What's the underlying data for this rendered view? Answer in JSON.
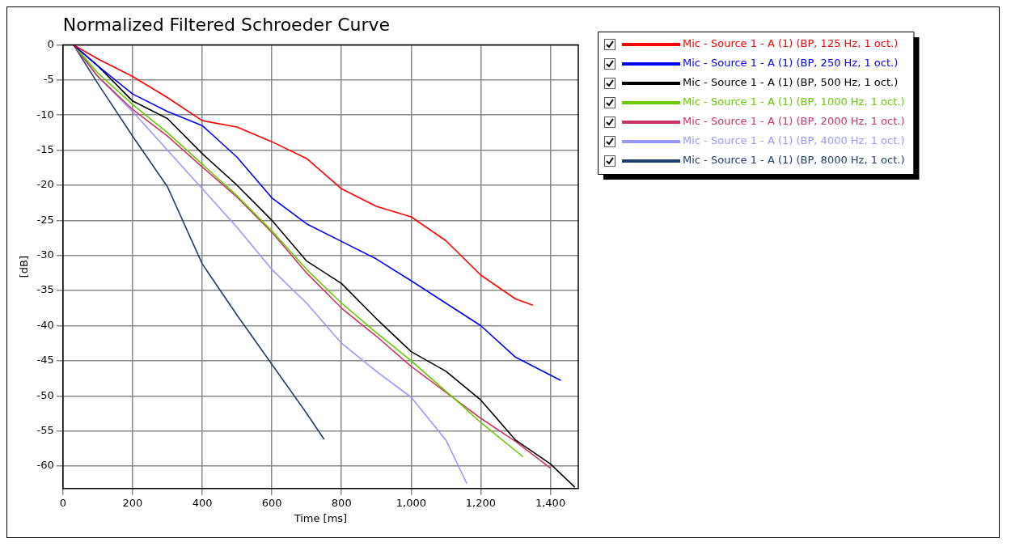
{
  "chart_data": {
    "type": "line",
    "title": "Normalized Filtered Schroeder Curve",
    "xlabel": "Time [ms]",
    "ylabel": "[dB]",
    "xlim": [
      0,
      1480
    ],
    "ylim": [
      -63.2,
      0
    ],
    "xticks": [
      0,
      200,
      400,
      600,
      800,
      {
        "value": 1000,
        "label": "1,000"
      },
      {
        "value": 1200,
        "label": "1,200"
      },
      {
        "value": 1400,
        "label": "1,400"
      }
    ],
    "yticks": [
      0,
      -5,
      -10,
      -15,
      -20,
      -25,
      -30,
      -35,
      -40,
      -45,
      -50,
      -55,
      -60
    ],
    "grid": true,
    "legend": "right",
    "series": [
      {
        "name": "Mic - Source 1 - A (1) (BP, 125 Hz, 1 oct.)",
        "color": "#ff0000",
        "x": [
          30,
          100,
          200,
          300,
          400,
          500,
          600,
          700,
          800,
          900,
          1000,
          1100,
          1200,
          1300,
          1350
        ],
        "values": [
          0,
          -2,
          -4.5,
          -7.5,
          -10.8,
          -11.7,
          -13.8,
          -16.2,
          -20.5,
          -23,
          -24.5,
          -27.9,
          -32.8,
          -36.2,
          -37.1
        ]
      },
      {
        "name": "Mic - Source 1 - A (1) (BP, 250 Hz, 1 oct.)",
        "color": "#0000ff",
        "x": [
          30,
          100,
          200,
          300,
          400,
          500,
          600,
          700,
          800,
          900,
          1000,
          1100,
          1200,
          1300,
          1430
        ],
        "values": [
          0,
          -3,
          -7,
          -9.5,
          -11.5,
          -16,
          -21.8,
          -25.5,
          -28,
          -30.5,
          -33.6,
          -36.8,
          -40,
          -44.5,
          -47.8
        ]
      },
      {
        "name": "Mic - Source 1 - A (1) (BP, 500 Hz, 1 oct.)",
        "color": "#000000",
        "x": [
          30,
          100,
          200,
          300,
          400,
          500,
          600,
          700,
          800,
          900,
          1000,
          1100,
          1200,
          1300,
          1400,
          1470
        ],
        "values": [
          0,
          -3,
          -8,
          -10.5,
          -15.5,
          -20,
          -25,
          -30.8,
          -34,
          -39,
          -43.7,
          -46.5,
          -50.6,
          -56.3,
          -59.7,
          -63
        ]
      },
      {
        "name": "Mic - Source 1 - A (1) (BP, 1000 Hz, 1 oct.)",
        "color": "#66cc00",
        "x": [
          30,
          100,
          200,
          300,
          400,
          500,
          600,
          700,
          800,
          900,
          1000,
          1147,
          1200,
          1322
        ],
        "values": [
          0,
          -4,
          -8.5,
          -12.5,
          -17,
          -21.5,
          -26.5,
          -32,
          -36.8,
          -41,
          -45,
          -51.4,
          -53.8,
          -58.7
        ]
      },
      {
        "name": "Mic - Source 1 - A (1) (BP, 2000 Hz, 1 oct.)",
        "color": "#cc3366",
        "x": [
          30,
          100,
          200,
          300,
          400,
          500,
          600,
          700,
          800,
          900,
          1000,
          1100,
          1200,
          1300,
          1400
        ],
        "values": [
          0,
          -4.5,
          -9.2,
          -13,
          -17.4,
          -21.7,
          -26.7,
          -32.5,
          -37.5,
          -41.5,
          -45.8,
          -49.5,
          -53.2,
          -56.5,
          -60.3
        ]
      },
      {
        "name": "Mic - Source 1 - A (1) (BP, 4000 Hz, 1 oct.)",
        "color": "#9999ff",
        "x": [
          30,
          100,
          200,
          300,
          400,
          500,
          600,
          700,
          800,
          900,
          1000,
          1100,
          1160
        ],
        "values": [
          0,
          -4.5,
          -9.5,
          -15,
          -20.5,
          -26,
          -32,
          -36.8,
          -42.5,
          -46.5,
          -50.2,
          -56.3,
          -62.5
        ]
      },
      {
        "name": "Mic - Source 1 - A (1) (BP, 8000 Hz, 1 oct.)",
        "color": "#1f3f6f",
        "x": [
          30,
          100,
          200,
          300,
          400,
          500,
          600,
          700,
          750
        ],
        "values": [
          0,
          -5.5,
          -13,
          -20.2,
          -31.2,
          -38.5,
          -45.5,
          -52.5,
          -56.2
        ]
      }
    ]
  }
}
